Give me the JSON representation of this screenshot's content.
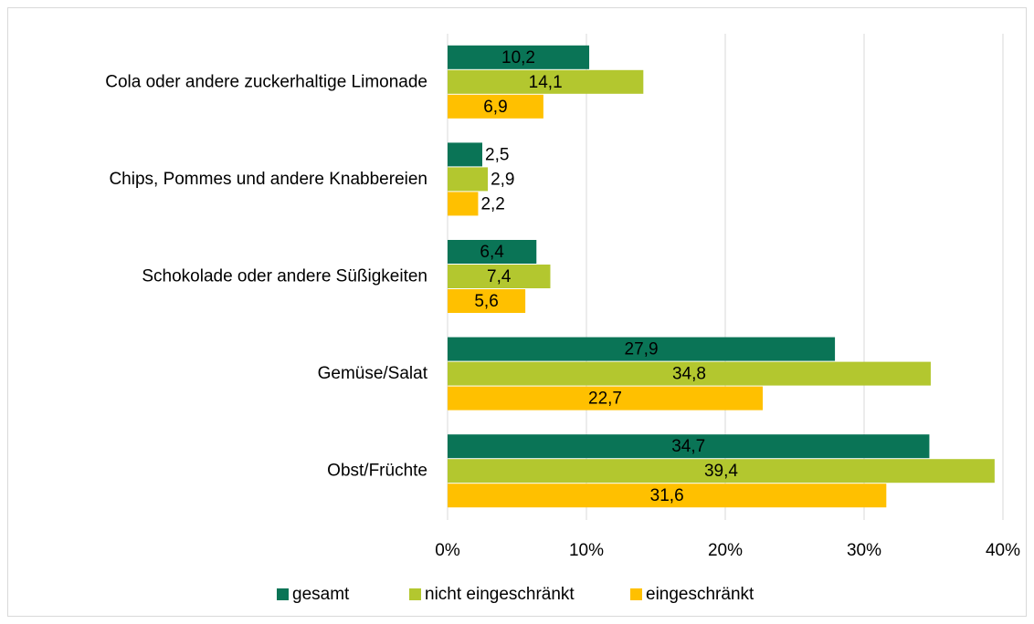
{
  "chart_data": {
    "type": "barh",
    "categories": [
      "Cola oder andere zuckerhaltige Limonade",
      "Chips, Pommes und andere Knabbereien",
      "Schokolade oder andere Süßigkeiten",
      "Gemüse/Salat",
      "Obst/Früchte"
    ],
    "series": [
      {
        "name": "gesamt",
        "color": "#0a7456",
        "values": [
          10.2,
          2.5,
          6.4,
          27.9,
          34.7
        ],
        "value_labels": [
          "10,2",
          "2,5",
          "6,4",
          "27,9",
          "34,7"
        ]
      },
      {
        "name": "nicht eingeschränkt",
        "color": "#b3c72f",
        "values": [
          14.1,
          2.9,
          7.4,
          34.8,
          39.4
        ],
        "value_labels": [
          "14,1",
          "2,9",
          "7,4",
          "34,8",
          "39,4"
        ]
      },
      {
        "name": "eingeschränkt",
        "color": "#ffc000",
        "values": [
          6.9,
          2.2,
          5.6,
          22.7,
          31.6
        ],
        "value_labels": [
          "6,9",
          "2,2",
          "5,6",
          "22,7",
          "31,6"
        ]
      }
    ],
    "xlim": [
      0,
      40
    ],
    "xticks": [
      {
        "value": 0,
        "label": "0%"
      },
      {
        "value": 10,
        "label": "10%"
      },
      {
        "value": 20,
        "label": "20%"
      },
      {
        "value": 30,
        "label": "30%"
      },
      {
        "value": 40,
        "label": "40%"
      }
    ],
    "grid": true,
    "legend": "bottom"
  }
}
